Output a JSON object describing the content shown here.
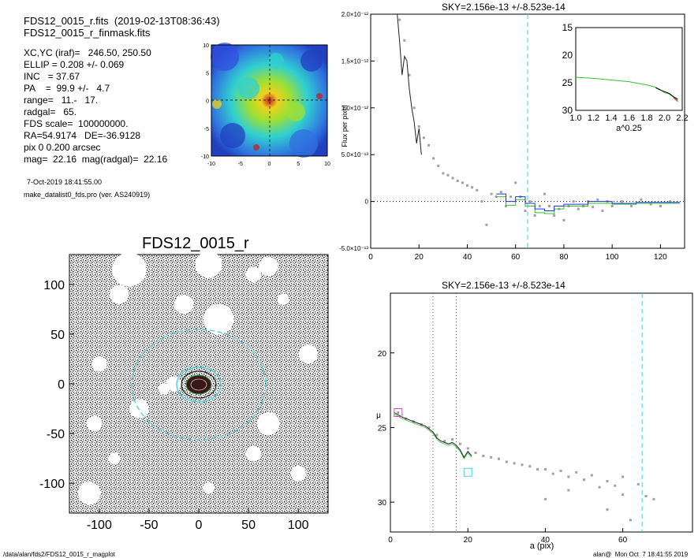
{
  "header": {
    "line1": "FDS12_0015_r.fits  (2019-02-13T08:36:43)",
    "line2": "FDS12_0015_r_finmask.fits"
  },
  "params": [
    "XC,YC (iraf)=   246.50, 250.50",
    "ELLIP = 0.208 +/- 0.069",
    "INC   = 37.67",
    "PA    =  99.9 +/-   4.7",
    "range=   11.-   17.",
    "radgal=   65.",
    "FDS scale=  100000000.",
    "RA=54.9174   DE=-36.9128",
    "pix 0 0.200 arcsec",
    "mag=  22.16  mag(radgal)=  22.16"
  ],
  "date_line": "7-Oct-2019 18:41:55.00",
  "program_line": "make_datalist0_fds.pro (ver. AS240919)",
  "image_title": "FDS12_0015_r",
  "footer": {
    "path": "/data/alan/fds2/FDS12_0015_r_magplot",
    "user": "alan@  Mon Oct  7 18:41:55 2019"
  },
  "colors": {
    "cyan": "#40d0e0",
    "black_profile": "#202020",
    "green": "#30c030",
    "blue": "#2030e0",
    "red": "#e03030",
    "magenta": "#e040c0",
    "gray_points": "#a0a0a0"
  },
  "chart_data": [
    {
      "id": "cutout_map",
      "type": "heatmap",
      "xlim": [
        -10,
        10
      ],
      "ylim": [
        -10,
        10
      ],
      "x_ticks": [
        "-10",
        "-5",
        "0",
        "5",
        "10"
      ],
      "y_ticks": [
        "10",
        "5",
        "0",
        "-5",
        "-10"
      ]
    },
    {
      "id": "flux_profile",
      "type": "line",
      "title": "SKY=2.156e-13 +/-8.523e-14",
      "ylabel": "Flux per pixel",
      "xlim": [
        0,
        130
      ],
      "ylim": [
        -5e-13,
        2e-12
      ],
      "x_ticks": [
        "0",
        "20",
        "40",
        "60",
        "80",
        "100",
        "120"
      ],
      "y_ticks": [
        {
          "v": 2e-12,
          "label": "2.0×10⁻¹²"
        },
        {
          "v": 1.5e-12,
          "label": "1.5×10⁻¹²"
        },
        {
          "v": 1e-12,
          "label": "1.0×10⁻¹²"
        },
        {
          "v": 5e-13,
          "label": "5.0×10⁻¹³"
        },
        {
          "v": 0,
          "label": "0"
        },
        {
          "v": -5e-13,
          "label": "-5.0×10⁻¹³"
        }
      ],
      "vline_x": 65,
      "profile": [
        [
          11,
          2e-12
        ],
        [
          12,
          1.7e-12
        ],
        [
          13,
          1.35e-12
        ],
        [
          14,
          1.55e-12
        ],
        [
          15,
          1.5e-12
        ],
        [
          16,
          1.2e-12
        ],
        [
          17,
          1e-12
        ],
        [
          18,
          8.5e-13
        ],
        [
          19,
          6.2e-13
        ],
        [
          20,
          7.8e-13
        ],
        [
          21,
          5e-13
        ]
      ],
      "points": [
        [
          12,
          1.94e-12
        ],
        [
          14,
          1.72e-12
        ],
        [
          16,
          1.35e-12
        ],
        [
          18,
          1e-12
        ],
        [
          20,
          8e-13
        ],
        [
          22,
          6.8e-13
        ],
        [
          24,
          6e-13
        ],
        [
          26,
          4.6e-13
        ],
        [
          28,
          3.8e-13
        ],
        [
          30,
          3e-13
        ],
        [
          32,
          2.8e-13
        ],
        [
          34,
          2.5e-13
        ],
        [
          36,
          2.2e-13
        ],
        [
          38,
          2e-13
        ],
        [
          40,
          1.7e-13
        ],
        [
          42,
          1.5e-13
        ],
        [
          44,
          1.2e-13
        ],
        [
          46,
          0.0
        ],
        [
          48,
          -2.5e-13
        ],
        [
          50,
          8e-14
        ],
        [
          52,
          5e-14
        ],
        [
          54,
          1e-13
        ],
        [
          56,
          -5e-14
        ],
        [
          58,
          5e-14
        ],
        [
          60,
          2e-13
        ],
        [
          62,
          5e-14
        ],
        [
          64,
          -1e-13
        ],
        [
          66,
          0.0
        ],
        [
          68,
          -1.5e-13
        ],
        [
          70,
          -5e-14
        ],
        [
          72,
          8e-14
        ],
        [
          74,
          -5e-14
        ],
        [
          76,
          -1.5e-13
        ],
        [
          78,
          -8e-14
        ],
        [
          80,
          -2e-13
        ],
        [
          82,
          -5e-14
        ],
        [
          84,
          0.0
        ],
        [
          86,
          -8e-14
        ],
        [
          88,
          -5e-14
        ],
        [
          90,
          0.0
        ],
        [
          92,
          -6e-14
        ],
        [
          94,
          2e-14
        ],
        [
          96,
          -1e-13
        ],
        [
          98,
          0.0
        ],
        [
          100,
          -5e-14
        ],
        [
          104,
          0.0
        ],
        [
          108,
          -5e-14
        ],
        [
          112,
          2e-14
        ],
        [
          116,
          -3e-14
        ],
        [
          120,
          -5e-14
        ],
        [
          124,
          0.0
        ]
      ],
      "step_blue": [
        [
          52,
          8e-14
        ],
        [
          56,
          0.0
        ],
        [
          60,
          5e-14
        ],
        [
          64,
          -2e-14
        ],
        [
          68,
          -8e-14
        ],
        [
          72,
          -1e-13
        ],
        [
          76,
          -5e-14
        ],
        [
          80,
          -3e-14
        ],
        [
          90,
          0.0
        ],
        [
          100,
          -2e-14
        ],
        [
          110,
          -1e-14
        ],
        [
          128,
          0.0
        ]
      ],
      "step_green": [
        [
          52,
          5e-14
        ],
        [
          56,
          -4e-14
        ],
        [
          60,
          2e-14
        ],
        [
          64,
          -5e-14
        ],
        [
          68,
          -1.2e-13
        ],
        [
          72,
          -1.3e-13
        ],
        [
          76,
          -8e-14
        ],
        [
          80,
          -5e-14
        ],
        [
          90,
          -2e-14
        ],
        [
          100,
          -3e-14
        ],
        [
          110,
          -2e-14
        ],
        [
          128,
          -2e-14
        ]
      ],
      "inset": {
        "xlabel": "a^0.25",
        "xlim": [
          1.0,
          2.2
        ],
        "ylim": [
          30,
          15
        ],
        "x_ticks": [
          "1.0",
          "1.2",
          "1.4",
          "1.6",
          "1.8",
          "2.0",
          "2.2"
        ],
        "y_ticks": [
          "15",
          "20",
          "25",
          "30"
        ],
        "green": [
          [
            1.0,
            24.0
          ],
          [
            1.2,
            24.2
          ],
          [
            1.4,
            24.5
          ],
          [
            1.6,
            24.8
          ],
          [
            1.7,
            25.1
          ],
          [
            1.8,
            25.4
          ],
          [
            1.9,
            25.8
          ],
          [
            1.95,
            26.2
          ],
          [
            2.0,
            26.8
          ],
          [
            2.05,
            27.0
          ],
          [
            2.1,
            27.6
          ],
          [
            2.15,
            28.2
          ]
        ],
        "black": [
          [
            1.9,
            25.9
          ],
          [
            1.95,
            26.3
          ],
          [
            2.0,
            26.6
          ],
          [
            2.05,
            26.9
          ],
          [
            2.1,
            27.5
          ],
          [
            2.15,
            28.0
          ]
        ],
        "red": [
          [
            2.1,
            27.7
          ],
          [
            2.15,
            28.4
          ]
        ]
      }
    },
    {
      "id": "mu_profile",
      "type": "line",
      "title": "SKY=2.156e-13 +/-8.523e-14",
      "xlabel": "a (pix)",
      "ylabel": "μ",
      "xlim": [
        0,
        78
      ],
      "ylim": [
        32,
        16
      ],
      "x_ticks": [
        "0",
        "20",
        "40",
        "60"
      ],
      "y_ticks": [
        "20",
        "25",
        "30"
      ],
      "vlines_gray": [
        11,
        17
      ],
      "vline_cyan": 65,
      "profile": [
        [
          1,
          24.0
        ],
        [
          3,
          24.3
        ],
        [
          5,
          24.5
        ],
        [
          7,
          24.7
        ],
        [
          9,
          24.9
        ],
        [
          11,
          25.3
        ],
        [
          12,
          25.7
        ],
        [
          13,
          25.9
        ],
        [
          14,
          26.0
        ],
        [
          15,
          26.1
        ],
        [
          16,
          26.0
        ],
        [
          17,
          26.2
        ],
        [
          18,
          26.5
        ],
        [
          19,
          27.0
        ],
        [
          20,
          26.6
        ],
        [
          21,
          26.9
        ]
      ],
      "points": [
        [
          2,
          24.0
        ],
        [
          4,
          24.4
        ],
        [
          6,
          24.6
        ],
        [
          8,
          24.8
        ],
        [
          10,
          25.0
        ],
        [
          12,
          25.5
        ],
        [
          14,
          25.9
        ],
        [
          16,
          25.8
        ],
        [
          18,
          26.1
        ],
        [
          20,
          26.4
        ],
        [
          22,
          26.7
        ],
        [
          24,
          26.9
        ],
        [
          26,
          27.0
        ],
        [
          28,
          27.1
        ],
        [
          30,
          27.3
        ],
        [
          32,
          27.4
        ],
        [
          34,
          27.5
        ],
        [
          36,
          27.6
        ],
        [
          38,
          27.8
        ],
        [
          40,
          27.8
        ],
        [
          42,
          28.1
        ],
        [
          44,
          27.9
        ],
        [
          46,
          28.3
        ],
        [
          48,
          28.0
        ],
        [
          50,
          28.5
        ],
        [
          52,
          28.2
        ],
        [
          54,
          29.0
        ],
        [
          56,
          28.6
        ],
        [
          58,
          28.9
        ],
        [
          60,
          28.3
        ],
        [
          62,
          31.2
        ],
        [
          64,
          28.8
        ],
        [
          66,
          29.6
        ],
        [
          68,
          29.8
        ],
        [
          40,
          29.8
        ],
        [
          46,
          29.2
        ],
        [
          56,
          30.5
        ],
        [
          60,
          29.5
        ]
      ],
      "magenta_square": [
        2,
        24.0
      ],
      "cyan_square": [
        20,
        28.0
      ]
    }
  ]
}
